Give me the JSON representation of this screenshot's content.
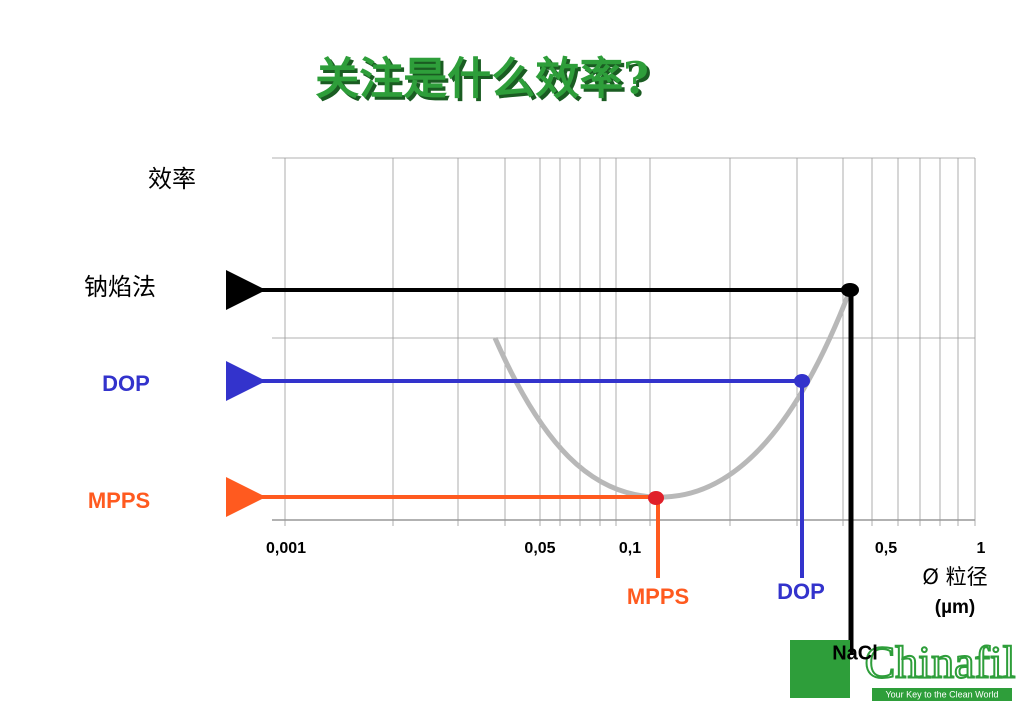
{
  "title": "关注是什么效率?",
  "y_axis_label": "效率",
  "levels": [
    "钠焰法",
    "DOP",
    "MPPS"
  ],
  "x_tick_labels": [
    "0,001",
    "0,05",
    "0,1",
    "0,5",
    "1"
  ],
  "x_axis_label": [
    "Ø 粒径",
    "(µm)"
  ],
  "particle_labels": [
    "MPPS",
    "DOP",
    "NaCl"
  ],
  "logo": {
    "name": "Chinafil",
    "slogan": "Your Key to the Clean World"
  }
}
